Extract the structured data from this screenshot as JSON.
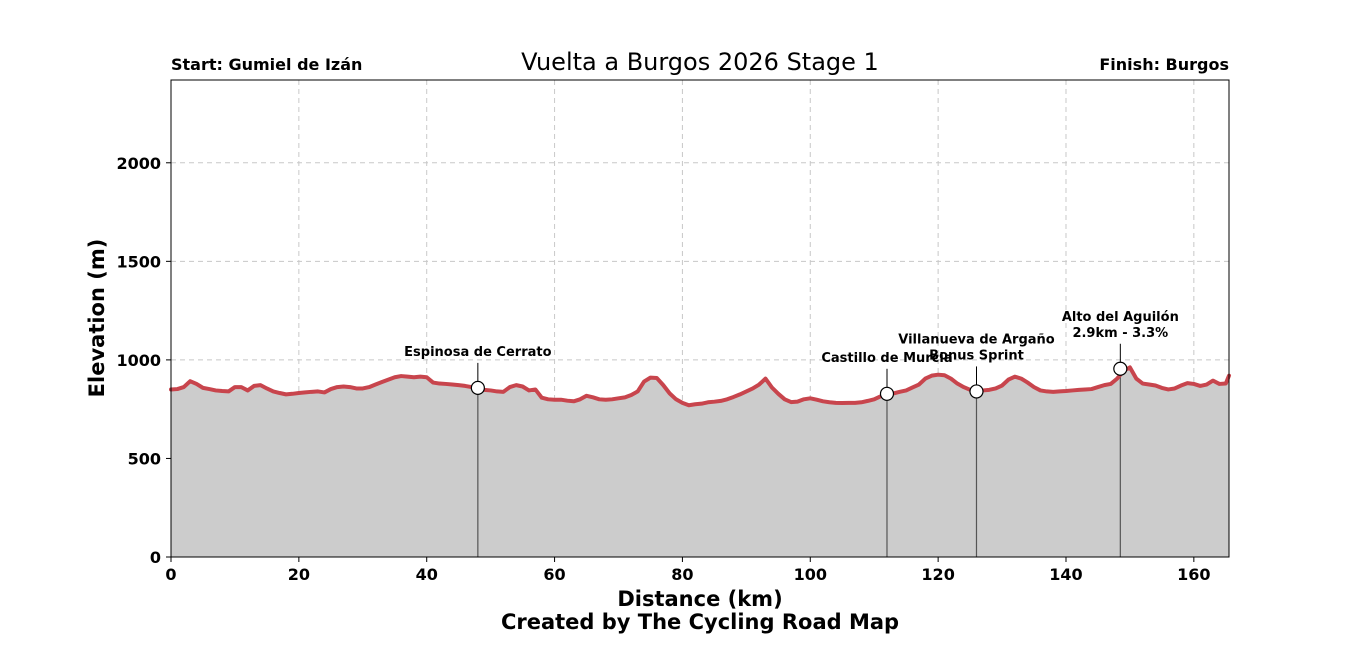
{
  "chart_data": {
    "type": "area",
    "title": "Vuelta a Burgos 2026 Stage 1",
    "start_label": "Start: Gumiel de Izán",
    "finish_label": "Finish: Burgos",
    "xlabel": "Distance (km)",
    "ylabel": "Elevation (m)",
    "credit": "Created by The Cycling Road Map",
    "xlim": [
      0,
      165.5
    ],
    "ylim": [
      0,
      2420
    ],
    "xticks": [
      0,
      20,
      40,
      60,
      80,
      100,
      120,
      140,
      160
    ],
    "yticks": [
      0,
      500,
      1000,
      1500,
      2000
    ],
    "grid": true,
    "fill_color": "#cccccc",
    "line_color": "#c8454d",
    "profile": {
      "x": [
        0,
        1,
        2,
        3,
        4,
        5,
        6,
        7,
        8,
        9,
        10,
        11,
        12,
        13,
        14,
        15,
        16,
        17,
        18,
        19,
        20,
        21,
        22,
        23,
        24,
        25,
        26,
        27,
        28,
        29,
        30,
        31,
        32,
        33,
        34,
        35,
        36,
        37,
        38,
        39,
        40,
        41,
        42,
        43,
        44,
        45,
        46,
        47,
        48,
        49,
        50,
        51,
        52,
        53,
        54,
        55,
        56,
        57,
        58,
        59,
        60,
        61,
        62,
        63,
        64,
        65,
        66,
        67,
        68,
        69,
        70,
        71,
        72,
        73,
        74,
        75,
        76,
        77,
        78,
        79,
        80,
        81,
        82,
        83,
        84,
        85,
        86,
        87,
        88,
        89,
        90,
        91,
        92,
        93,
        94,
        95,
        96,
        97,
        98,
        99,
        100,
        101,
        102,
        103,
        104,
        105,
        106,
        107,
        108,
        109,
        110,
        111,
        112,
        113,
        114,
        115,
        116,
        117,
        118,
        119,
        120,
        121,
        122,
        123,
        124,
        125,
        126,
        127,
        128,
        129,
        130,
        131,
        132,
        133,
        134,
        135,
        136,
        137,
        138,
        139,
        140,
        141,
        142,
        143,
        144,
        145,
        146,
        147,
        148,
        149,
        150,
        151,
        152,
        153,
        154,
        155,
        156,
        157,
        158,
        159,
        160,
        161,
        162,
        163,
        164,
        165,
        165.5
      ],
      "y": [
        850,
        852,
        862,
        892,
        878,
        858,
        852,
        845,
        842,
        840,
        862,
        862,
        845,
        868,
        872,
        855,
        840,
        832,
        825,
        828,
        832,
        835,
        838,
        840,
        835,
        852,
        862,
        865,
        862,
        855,
        855,
        862,
        875,
        888,
        900,
        912,
        918,
        915,
        912,
        915,
        912,
        885,
        880,
        878,
        875,
        872,
        868,
        862,
        858,
        848,
        845,
        840,
        838,
        862,
        872,
        865,
        845,
        850,
        808,
        800,
        798,
        798,
        793,
        790,
        800,
        818,
        810,
        800,
        798,
        800,
        805,
        810,
        822,
        840,
        890,
        910,
        908,
        872,
        830,
        800,
        782,
        770,
        775,
        778,
        785,
        788,
        792,
        800,
        812,
        825,
        840,
        855,
        875,
        905,
        860,
        828,
        800,
        786,
        788,
        800,
        805,
        798,
        790,
        785,
        782,
        781,
        782,
        782,
        785,
        792,
        800,
        815,
        825,
        830,
        838,
        845,
        860,
        875,
        905,
        920,
        925,
        922,
        905,
        880,
        862,
        848,
        840,
        845,
        848,
        855,
        870,
        900,
        915,
        905,
        885,
        862,
        845,
        840,
        838,
        840,
        842,
        845,
        848,
        850,
        852,
        862,
        872,
        878,
        905,
        945,
        962,
        905,
        880,
        875,
        870,
        858,
        850,
        855,
        870,
        882,
        878,
        868,
        875,
        895,
        878,
        880,
        920
      ]
    },
    "annotations": [
      {
        "x": 48.0,
        "y": 858,
        "label": [
          "Espinosa de Cerrato"
        ]
      },
      {
        "x": 112.0,
        "y": 828,
        "label": [
          "Castillo de Murcia"
        ]
      },
      {
        "x": 126.0,
        "y": 840,
        "label": [
          "Villanueva de Argaño",
          "Bonus Sprint"
        ]
      },
      {
        "x": 148.5,
        "y": 955,
        "label": [
          "Alto del Aguilón",
          "2.9km - 3.3%"
        ]
      }
    ]
  }
}
